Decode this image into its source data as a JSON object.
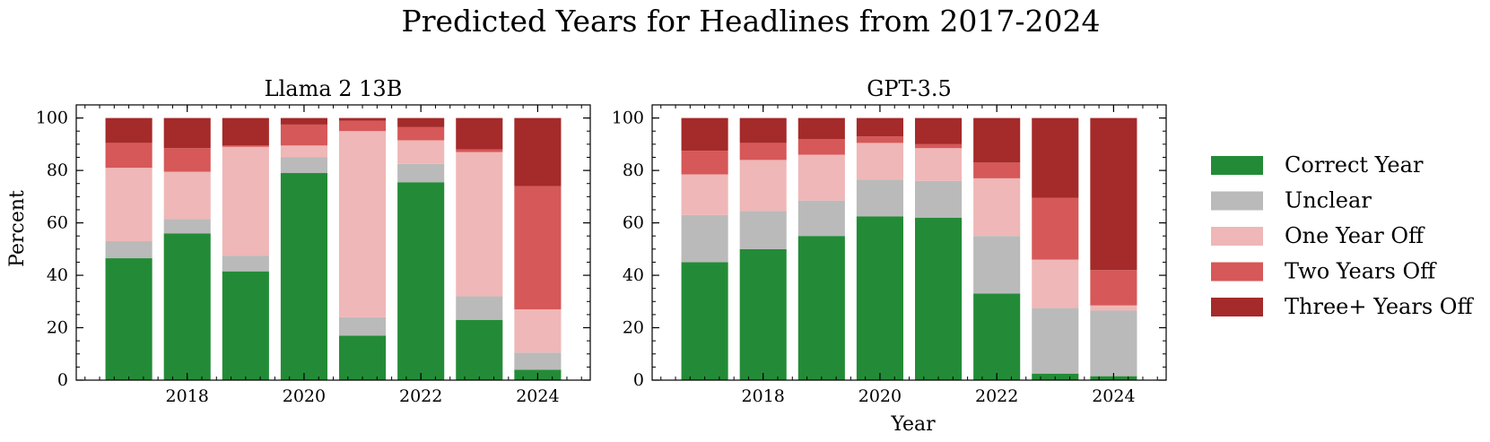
{
  "title": "Predicted Years for Headlines from 2017-2024",
  "xlabel": "Year",
  "ylabel": "Percent",
  "legend_position": "right",
  "categories": [
    "Correct Year",
    "Unclear",
    "One Year Off",
    "Two Years Off",
    "Three+ Years Off"
  ],
  "colors": {
    "Correct Year": "#238b37",
    "Unclear": "#bababa",
    "One Year Off": "#efb7b7",
    "Two Years Off": "#d65858",
    "Three+ Years Off": "#a52a2a"
  },
  "chart_data": [
    {
      "type": "bar",
      "stacked": true,
      "title": "Llama 2 13B",
      "x": [
        2017,
        2018,
        2019,
        2020,
        2021,
        2022,
        2023,
        2024
      ],
      "x_ticks": [
        2018,
        2020,
        2022,
        2024
      ],
      "y_ticks": [
        0,
        20,
        40,
        60,
        80,
        100
      ],
      "xlim": [
        2016.1,
        2024.9
      ],
      "ylim": [
        0,
        105
      ],
      "series": [
        {
          "name": "Correct Year",
          "values": [
            46.5,
            56,
            41.5,
            79,
            17,
            75.5,
            23,
            4
          ]
        },
        {
          "name": "Unclear",
          "values": [
            6.5,
            5.5,
            6,
            6,
            7,
            7,
            9,
            6.5
          ]
        },
        {
          "name": "One Year Off",
          "values": [
            28,
            18,
            41.5,
            4.5,
            71,
            9,
            55,
            16.5
          ]
        },
        {
          "name": "Two Years Off",
          "values": [
            9.5,
            9,
            0.5,
            8,
            4,
            5,
            1,
            47
          ]
        },
        {
          "name": "Three+ Years Off",
          "values": [
            9.5,
            11.5,
            10.5,
            2.5,
            1,
            3.5,
            12,
            26
          ]
        }
      ]
    },
    {
      "type": "bar",
      "stacked": true,
      "title": "GPT-3.5",
      "x": [
        2017,
        2018,
        2019,
        2020,
        2021,
        2022,
        2023,
        2024
      ],
      "x_ticks": [
        2018,
        2020,
        2022,
        2024
      ],
      "y_ticks": [
        0,
        20,
        40,
        60,
        80,
        100
      ],
      "xlim": [
        2016.1,
        2024.9
      ],
      "ylim": [
        0,
        105
      ],
      "series": [
        {
          "name": "Correct Year",
          "values": [
            45,
            50,
            55,
            62.5,
            62,
            33,
            2.5,
            1.5
          ]
        },
        {
          "name": "Unclear",
          "values": [
            18,
            14.5,
            13.5,
            14,
            14,
            22,
            25,
            25
          ]
        },
        {
          "name": "One Year Off",
          "values": [
            15.5,
            19.5,
            17.5,
            14,
            12.5,
            22,
            18.5,
            2
          ]
        },
        {
          "name": "Two Years Off",
          "values": [
            9,
            6.5,
            6,
            2.5,
            1.5,
            6,
            23.5,
            13.5
          ]
        },
        {
          "name": "Three+ Years Off",
          "values": [
            12.5,
            9.5,
            8,
            7,
            10,
            17,
            30.5,
            58
          ]
        }
      ]
    }
  ]
}
